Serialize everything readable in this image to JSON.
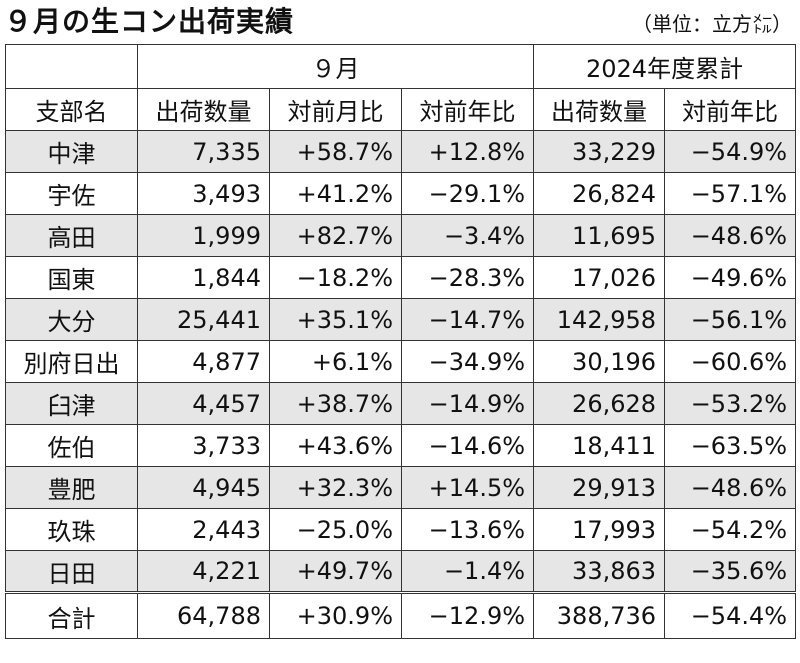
{
  "title": "９月の生コン出荷実績",
  "unit": "（単位：立方㍍）",
  "header": {
    "group_month": "９月",
    "group_cumulative": "2024年度累計",
    "col_branch": "支部名",
    "col_month_qty": "出荷数量",
    "col_month_mom": "対前月比",
    "col_month_yoy": "対前年比",
    "col_cum_qty": "出荷数量",
    "col_cum_yoy": "対前年比"
  },
  "rows": [
    {
      "branch": "中津",
      "qty": "7,335",
      "mom": "+58.7%",
      "yoy": "+12.8%",
      "cum_qty": "33,229",
      "cum_yoy": "−54.9%"
    },
    {
      "branch": "宇佐",
      "qty": "3,493",
      "mom": "+41.2%",
      "yoy": "−29.1%",
      "cum_qty": "26,824",
      "cum_yoy": "−57.1%"
    },
    {
      "branch": "高田",
      "qty": "1,999",
      "mom": "+82.7%",
      "yoy": "−3.4%",
      "cum_qty": "11,695",
      "cum_yoy": "−48.6%"
    },
    {
      "branch": "国東",
      "qty": "1,844",
      "mom": "−18.2%",
      "yoy": "−28.3%",
      "cum_qty": "17,026",
      "cum_yoy": "−49.6%"
    },
    {
      "branch": "大分",
      "qty": "25,441",
      "mom": "+35.1%",
      "yoy": "−14.7%",
      "cum_qty": "142,958",
      "cum_yoy": "−56.1%"
    },
    {
      "branch": "別府日出",
      "qty": "4,877",
      "mom": "+6.1%",
      "yoy": "−34.9%",
      "cum_qty": "30,196",
      "cum_yoy": "−60.6%"
    },
    {
      "branch": "臼津",
      "qty": "4,457",
      "mom": "+38.7%",
      "yoy": "−14.9%",
      "cum_qty": "26,628",
      "cum_yoy": "−53.2%"
    },
    {
      "branch": "佐伯",
      "qty": "3,733",
      "mom": "+43.6%",
      "yoy": "−14.6%",
      "cum_qty": "18,411",
      "cum_yoy": "−63.5%"
    },
    {
      "branch": "豊肥",
      "qty": "4,945",
      "mom": "+32.3%",
      "yoy": "+14.5%",
      "cum_qty": "29,913",
      "cum_yoy": "−48.6%"
    },
    {
      "branch": "玖珠",
      "qty": "2,443",
      "mom": "−25.0%",
      "yoy": "−13.6%",
      "cum_qty": "17,993",
      "cum_yoy": "−54.2%"
    },
    {
      "branch": "日田",
      "qty": "4,221",
      "mom": "+49.7%",
      "yoy": "−1.4%",
      "cum_qty": "33,863",
      "cum_yoy": "−35.6%"
    }
  ],
  "total": {
    "branch": "合計",
    "qty": "64,788",
    "mom": "+30.9%",
    "yoy": "−12.9%",
    "cum_qty": "388,736",
    "cum_yoy": "−54.4%"
  }
}
